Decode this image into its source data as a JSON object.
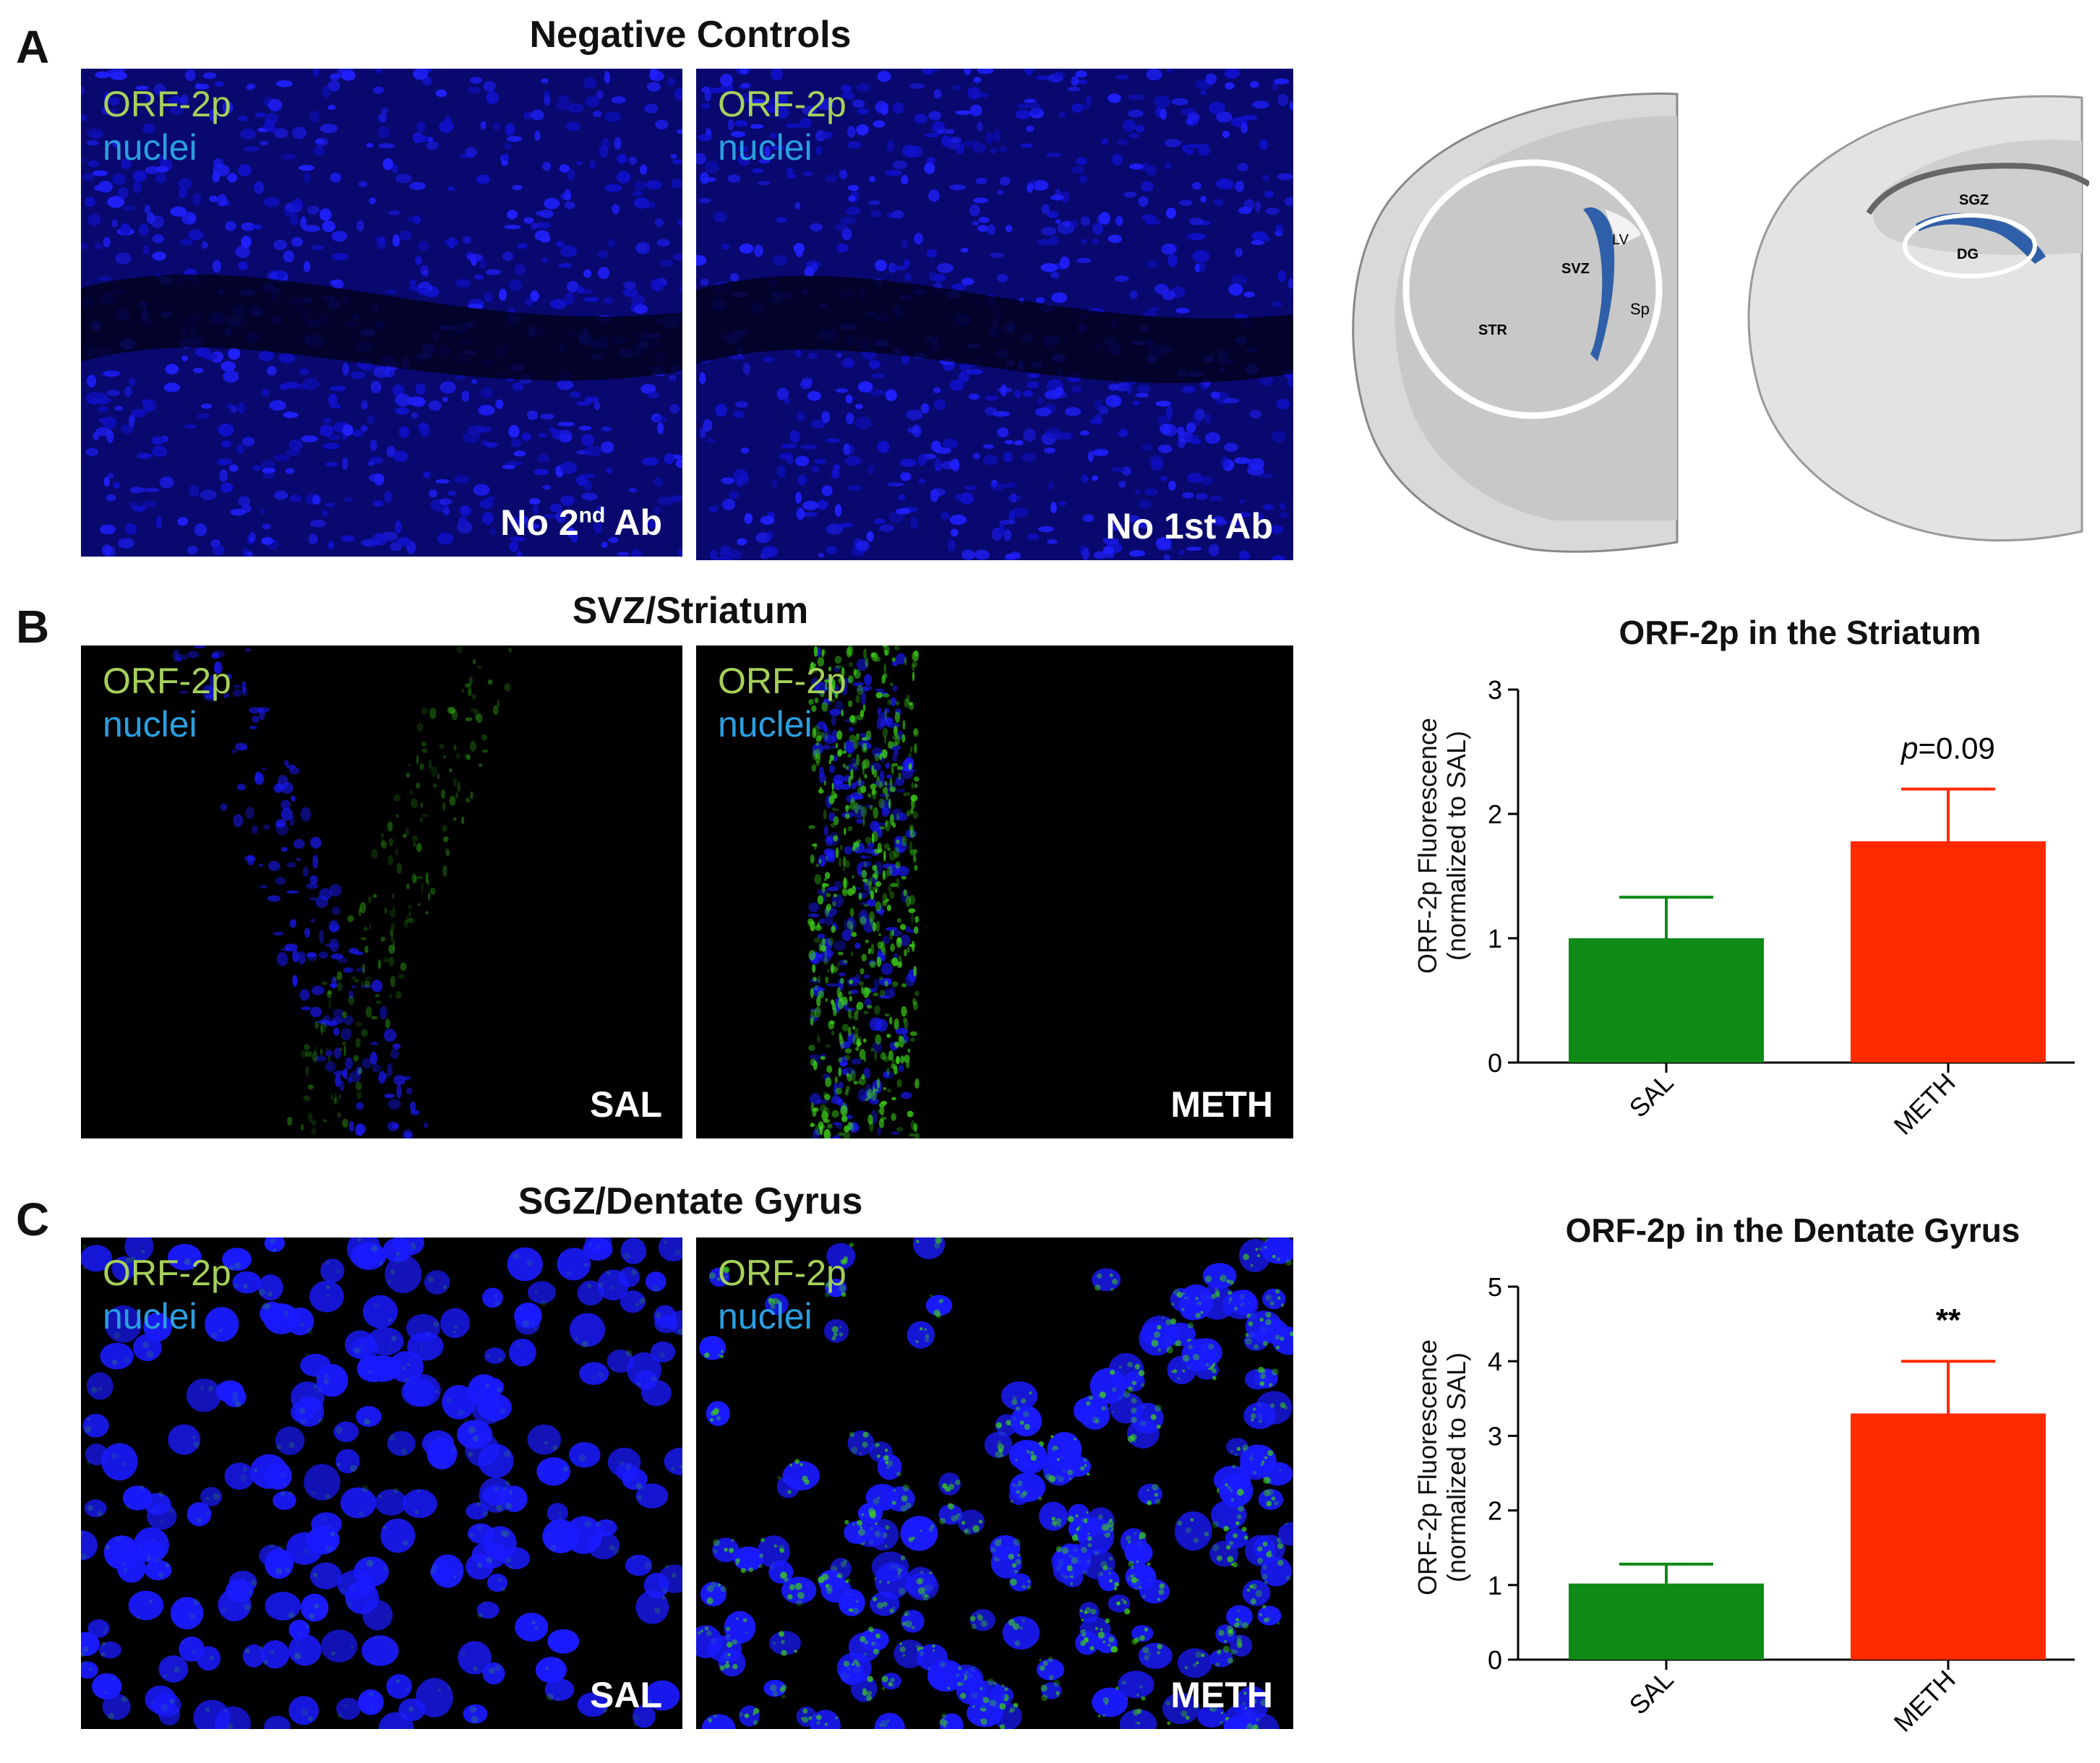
{
  "panels": {
    "a": {
      "letter": "A",
      "title": "Negative Controls",
      "images": [
        {
          "stain_orf": "ORF-2p",
          "stain_nuc": "nuclei",
          "caption_pre": "No 2",
          "caption_sup": "nd",
          "caption_post": " Ab"
        },
        {
          "stain_orf": "ORF-2p",
          "stain_nuc": "nuclei",
          "caption": "No 1st Ab"
        }
      ],
      "atlas": {
        "left_labels": [
          "LV",
          "SVZ",
          "STR",
          "Sp"
        ],
        "right_labels": [
          "SGZ",
          "DG"
        ]
      }
    },
    "b": {
      "letter": "B",
      "title": "SVZ/Striatum",
      "images": [
        {
          "stain_orf": "ORF-2p",
          "stain_nuc": "nuclei",
          "caption": "SAL"
        },
        {
          "stain_orf": "ORF-2p",
          "stain_nuc": "nuclei",
          "caption": "METH"
        }
      ]
    },
    "c": {
      "letter": "C",
      "title": "SGZ/Dentate Gyrus",
      "images": [
        {
          "stain_orf": "ORF-2p",
          "stain_nuc": "nuclei",
          "caption": "SAL"
        },
        {
          "stain_orf": "ORF-2p",
          "stain_nuc": "nuclei",
          "caption": "METH"
        }
      ]
    }
  },
  "colors": {
    "sal": "#0e8a16",
    "meth": "#ff2a00",
    "nuclei": "#1a1aff",
    "orf": "#3ccf1a"
  },
  "chart_data": [
    {
      "type": "bar",
      "title": "ORF-2p in the Striatum",
      "ylabel_line1": "ORF-2p Fluorescence",
      "ylabel_line2": "(normalized to SAL)",
      "categories": [
        "SAL",
        "METH"
      ],
      "values": [
        1.0,
        1.78
      ],
      "errors": [
        0.33,
        0.42
      ],
      "ylim": [
        0,
        3
      ],
      "yticks": [
        "0",
        "1",
        "2",
        "3"
      ],
      "annotation_p": "p",
      "annotation_rest": "=0.09"
    },
    {
      "type": "bar",
      "title": "ORF-2p in the Dentate Gyrus",
      "ylabel_line1": "ORF-2p Fluorescence",
      "ylabel_line2": "(normalized to SAL)",
      "categories": [
        "SAL",
        "METH"
      ],
      "values": [
        1.02,
        3.3
      ],
      "errors": [
        0.26,
        0.7
      ],
      "ylim": [
        0,
        5
      ],
      "yticks": [
        "0",
        "1",
        "2",
        "3",
        "4",
        "5"
      ],
      "annotation": "**"
    }
  ]
}
